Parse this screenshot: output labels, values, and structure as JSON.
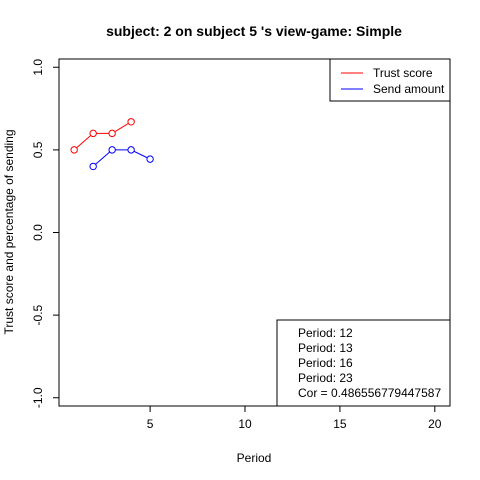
{
  "chart_data": {
    "type": "line",
    "title": "subject:  2  on subject  5 's view-game:  Simple",
    "xlabel": "Period",
    "ylabel": "Trust score and percentage of sending",
    "xlim": [
      0.2,
      20.8
    ],
    "ylim": [
      -1.05,
      1.05
    ],
    "xticks": [
      5,
      10,
      15,
      20
    ],
    "yticks": [
      -1.0,
      -0.5,
      0.0,
      0.5,
      1.0
    ],
    "xtick_labels": [
      "5",
      "10",
      "15",
      "20"
    ],
    "ytick_labels": [
      "-1.0",
      "-0.5",
      "0.0",
      "0.5",
      "1.0"
    ],
    "grid": false,
    "legend_position": "top-right",
    "series": [
      {
        "name": "Trust score",
        "color": "#ff0000",
        "x": [
          1,
          2,
          3,
          4
        ],
        "y": [
          0.5,
          0.6,
          0.6,
          0.67
        ]
      },
      {
        "name": "Send amount",
        "color": "#0000ff",
        "x": [
          2,
          3,
          4,
          5
        ],
        "y": [
          0.4,
          0.5,
          0.5,
          0.444
        ]
      }
    ],
    "annotations": [
      "Period:  12",
      "Period:  13",
      "Period:  16",
      "Period:  23",
      "Cor =  0.486556779447587"
    ]
  }
}
